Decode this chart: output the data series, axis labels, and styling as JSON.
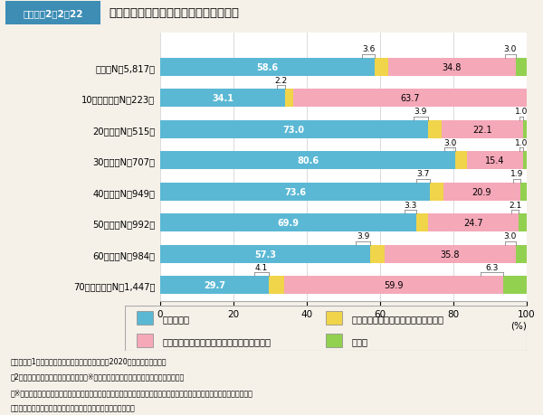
{
  "title_box": "図表Ｉ－2－2－22",
  "title_main": "キャッシュレス決済利用率（年齢層別）",
  "categories": [
    "全体（N＝5,817）",
    "10歳代後半（N＝223）",
    "20歳代（N＝515）",
    "30歳代（N＝707）",
    "40歳代（N＝949）",
    "50歳代（N＝992）",
    "60歳代（N＝984）",
    "70歳代以上（N＝1,447）"
  ],
  "data": {
    "using": [
      58.6,
      34.1,
      73.0,
      80.6,
      73.6,
      69.9,
      57.3,
      29.7
    ],
    "used_before": [
      3.6,
      2.2,
      3.9,
      3.0,
      3.7,
      3.3,
      3.9,
      4.1
    ],
    "not_know": [
      34.8,
      63.7,
      22.1,
      15.4,
      20.9,
      24.7,
      35.8,
      59.9
    ],
    "no_answer": [
      3.0,
      0.0,
      1.0,
      1.0,
      1.9,
      2.1,
      3.0,
      6.3
    ]
  },
  "colors": {
    "using": "#5bb8d4",
    "used_before": "#f0d44a",
    "not_know": "#f4a8b8",
    "no_answer": "#92d050"
  },
  "legend_labels": [
    "使っている",
    "以前使っていたが、今は使っていない",
    "使ってない、キャッシュレス決済を知らない",
    "無回答"
  ],
  "xlabel": "(%)",
  "note_lines": [
    "（備考）　1．消費者庁「消費者意識基本調査」（2020年度）により作成。",
    "　2．「あなたはキャッシュレス決済（※）を使っていますか。」との問に対する回答。",
    "　※キャッシュレス決済とは、物理的な現金（紙幣・硬貨）を使用せずに商品・サービスの料金の支払いなどを行うこと（こ",
    "　こでは銀行などの口座振替、振込などによる決済を除く。）。"
  ],
  "bg_color": "#f5f0e8",
  "plot_bg_color": "#ffffff",
  "title_bg_color": "#ddeef6",
  "title_box_color": "#3d8db5",
  "title_box_text_color": "#ffffff"
}
